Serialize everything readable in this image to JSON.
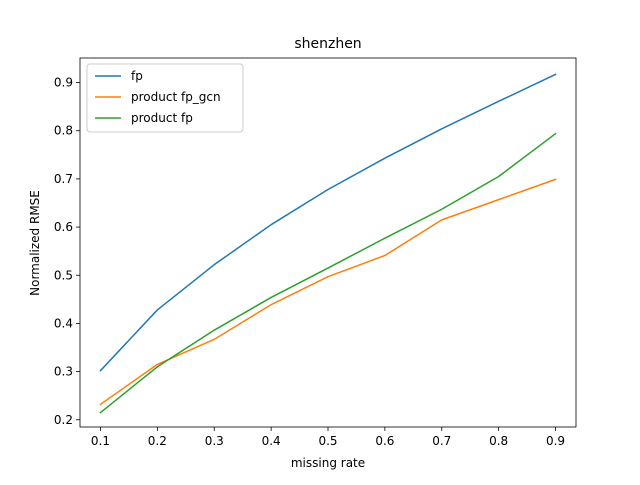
{
  "chart_data": {
    "type": "line",
    "title": "shenzhen",
    "xlabel": "missing rate",
    "ylabel": "Normalized RMSE",
    "xlim": [
      0.064,
      0.936
    ],
    "ylim": [
      0.185,
      0.951
    ],
    "xticks": [
      0.1,
      0.2,
      0.3,
      0.4,
      0.5,
      0.6,
      0.7,
      0.8,
      0.9
    ],
    "xtick_labels": [
      "0.1",
      "0.2",
      "0.3",
      "0.4",
      "0.5",
      "0.6",
      "0.7",
      "0.8",
      "0.9"
    ],
    "yticks": [
      0.2,
      0.3,
      0.4,
      0.5,
      0.6,
      0.7,
      0.8,
      0.9
    ],
    "ytick_labels": [
      "0.2",
      "0.3",
      "0.4",
      "0.5",
      "0.6",
      "0.7",
      "0.8",
      "0.9"
    ],
    "grid": false,
    "legend_position": "top-left",
    "x": [
      0.1,
      0.2,
      0.3,
      0.4,
      0.5,
      0.6,
      0.7,
      0.8,
      0.9
    ],
    "series": [
      {
        "name": "fp",
        "color": "#1f77b4",
        "values": [
          0.302,
          0.428,
          0.522,
          0.605,
          0.678,
          0.743,
          0.804,
          0.861,
          0.917
        ]
      },
      {
        "name": "product fp_gcn",
        "color": "#ff7f0e",
        "values": [
          0.232,
          0.315,
          0.367,
          0.439,
          0.497,
          0.541,
          0.615,
          0.657,
          0.699
        ]
      },
      {
        "name": "product fp",
        "color": "#2ca02c",
        "values": [
          0.215,
          0.31,
          0.386,
          0.454,
          0.515,
          0.577,
          0.637,
          0.705,
          0.794
        ]
      }
    ]
  }
}
